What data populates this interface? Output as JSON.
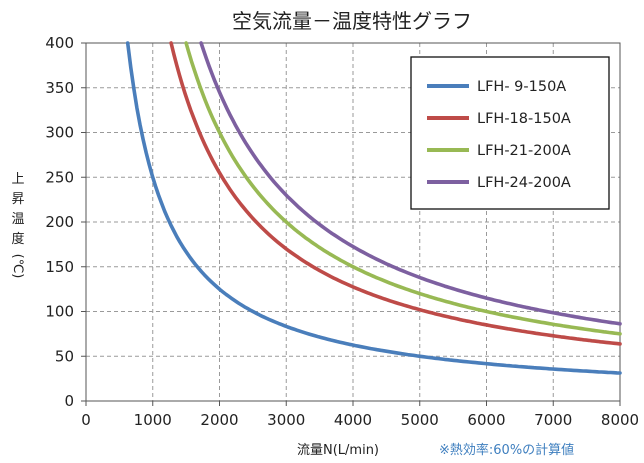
{
  "chart_data": {
    "type": "line",
    "title": "空気流量－温度特性グラフ",
    "xlabel": "流量N(L/min)",
    "ylabel": [
      "上",
      "昇",
      "温",
      "度",
      "(℃)"
    ],
    "note": "※熱効率:60%の計算値",
    "xlim": [
      0,
      8000
    ],
    "ylim": [
      0,
      400
    ],
    "x_ticks": [
      "0",
      "1000",
      "2000",
      "3000",
      "4000",
      "5000",
      "6000",
      "7000",
      "8000"
    ],
    "y_ticks": [
      "0",
      "50",
      "100",
      "150",
      "200",
      "250",
      "300",
      "350",
      "400"
    ],
    "grid": true,
    "legend_position": "top-right",
    "series": [
      {
        "name": "LFH- 9-150A",
        "color": "#4a7ebb",
        "k": 250000,
        "x": [
          625,
          750,
          1000,
          1500,
          2000,
          3000,
          4000,
          5000,
          6000,
          7000,
          8000
        ],
        "y": [
          400,
          333,
          250,
          167,
          125,
          83,
          63,
          50,
          42,
          36,
          31
        ]
      },
      {
        "name": "LFH-18-150A",
        "color": "#be4b48",
        "k": 510000,
        "x": [
          1275,
          1500,
          2000,
          3000,
          4000,
          5000,
          6000,
          7000,
          8000
        ],
        "y": [
          400,
          340,
          255,
          170,
          128,
          102,
          85,
          73,
          64
        ]
      },
      {
        "name": "LFH-21-200A",
        "color": "#98b954",
        "k": 600000,
        "x": [
          1500,
          2000,
          3000,
          4000,
          5000,
          6000,
          7000,
          8000
        ],
        "y": [
          400,
          300,
          200,
          150,
          120,
          100,
          86,
          75
        ]
      },
      {
        "name": "LFH-24-200A",
        "color": "#7d60a0",
        "k": 690000,
        "x": [
          1725,
          2000,
          3000,
          4000,
          5000,
          6000,
          7000,
          8000
        ],
        "y": [
          400,
          345,
          230,
          173,
          138,
          115,
          99,
          86
        ]
      }
    ]
  }
}
